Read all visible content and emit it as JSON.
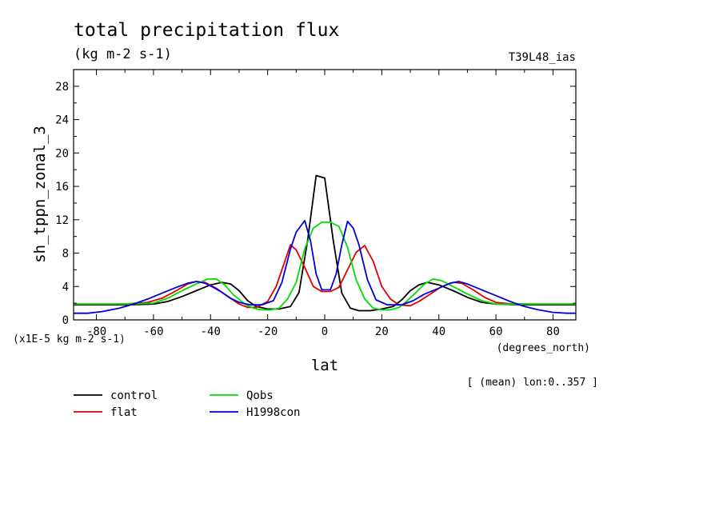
{
  "chart_data": {
    "type": "line",
    "title": "total precipitation flux",
    "units": "(kg m-2 s-1)",
    "run_label": "T39L48_ias",
    "ylabel": "sh_tppn_zonal_3",
    "xlabel": "lat",
    "x_units": "(degrees_north)",
    "scale_note": "(x1E-5 kg m-2 s-1)",
    "average_note": "[ (mean) lon:0..357 ]",
    "xlim": [
      -88,
      88
    ],
    "ylim": [
      0,
      30
    ],
    "x_ticks": [
      -80,
      -60,
      -40,
      -20,
      0,
      20,
      40,
      60,
      80
    ],
    "y_ticks": [
      0,
      4,
      8,
      12,
      16,
      20,
      24,
      28
    ],
    "x_tick_labels": [
      "-80",
      "-60",
      "-40",
      "-20",
      "0",
      "20",
      "40",
      "60",
      "80"
    ],
    "y_tick_labels": [
      "0",
      "4",
      "8",
      "12",
      "16",
      "20",
      "24",
      "28"
    ],
    "grid": false,
    "legend_position": "bottom-left",
    "series": [
      {
        "name": "control",
        "color": "#000000",
        "points": [
          [
            -88,
            1.8
          ],
          [
            -80,
            1.8
          ],
          [
            -70,
            1.8
          ],
          [
            -60,
            1.9
          ],
          [
            -55,
            2.2
          ],
          [
            -50,
            2.8
          ],
          [
            -45,
            3.5
          ],
          [
            -40,
            4.2
          ],
          [
            -36,
            4.5
          ],
          [
            -33,
            4.3
          ],
          [
            -30,
            3.5
          ],
          [
            -27,
            2.3
          ],
          [
            -24,
            1.6
          ],
          [
            -20,
            1.3
          ],
          [
            -16,
            1.3
          ],
          [
            -12,
            1.6
          ],
          [
            -9,
            3.3
          ],
          [
            -6,
            9.5
          ],
          [
            -3,
            17.3
          ],
          [
            0,
            17.0
          ],
          [
            3,
            9.5
          ],
          [
            6,
            3.2
          ],
          [
            9,
            1.4
          ],
          [
            12,
            1.1
          ],
          [
            16,
            1.1
          ],
          [
            20,
            1.3
          ],
          [
            24,
            1.6
          ],
          [
            27,
            2.4
          ],
          [
            30,
            3.5
          ],
          [
            33,
            4.2
          ],
          [
            36,
            4.5
          ],
          [
            40,
            4.2
          ],
          [
            45,
            3.5
          ],
          [
            50,
            2.7
          ],
          [
            55,
            2.1
          ],
          [
            60,
            1.9
          ],
          [
            70,
            1.8
          ],
          [
            80,
            1.8
          ],
          [
            88,
            1.8
          ]
        ]
      },
      {
        "name": "flat",
        "color": "#e00000",
        "points": [
          [
            -88,
            1.9
          ],
          [
            -80,
            1.9
          ],
          [
            -70,
            1.9
          ],
          [
            -62,
            2.1
          ],
          [
            -57,
            2.6
          ],
          [
            -52,
            3.5
          ],
          [
            -48,
            4.3
          ],
          [
            -45,
            4.6
          ],
          [
            -42,
            4.5
          ],
          [
            -38,
            3.8
          ],
          [
            -34,
            2.8
          ],
          [
            -30,
            1.9
          ],
          [
            -27,
            1.5
          ],
          [
            -24,
            1.5
          ],
          [
            -20,
            2.2
          ],
          [
            -17,
            4.0
          ],
          [
            -14,
            7.0
          ],
          [
            -12,
            9.0
          ],
          [
            -10,
            8.4
          ],
          [
            -7,
            6.3
          ],
          [
            -4,
            4.0
          ],
          [
            -1,
            3.4
          ],
          [
            2,
            3.4
          ],
          [
            5,
            3.9
          ],
          [
            8,
            6.0
          ],
          [
            11,
            8.1
          ],
          [
            14,
            8.9
          ],
          [
            17,
            7.0
          ],
          [
            20,
            4.0
          ],
          [
            23,
            2.5
          ],
          [
            26,
            1.8
          ],
          [
            30,
            1.7
          ],
          [
            33,
            2.2
          ],
          [
            37,
            3.1
          ],
          [
            41,
            4.0
          ],
          [
            45,
            4.5
          ],
          [
            48,
            4.4
          ],
          [
            52,
            3.6
          ],
          [
            56,
            2.7
          ],
          [
            60,
            2.1
          ],
          [
            66,
            1.9
          ],
          [
            75,
            1.9
          ],
          [
            88,
            1.9
          ]
        ]
      },
      {
        "name": "Qobs",
        "color": "#00dd00",
        "points": [
          [
            -88,
            1.9
          ],
          [
            -80,
            1.9
          ],
          [
            -70,
            1.9
          ],
          [
            -60,
            2.0
          ],
          [
            -55,
            2.6
          ],
          [
            -50,
            3.5
          ],
          [
            -45,
            4.3
          ],
          [
            -41,
            4.9
          ],
          [
            -38,
            4.9
          ],
          [
            -35,
            4.2
          ],
          [
            -32,
            3.0
          ],
          [
            -28,
            1.9
          ],
          [
            -25,
            1.4
          ],
          [
            -22,
            1.2
          ],
          [
            -19,
            1.2
          ],
          [
            -16,
            1.4
          ],
          [
            -13,
            2.5
          ],
          [
            -10,
            4.5
          ],
          [
            -7,
            8.5
          ],
          [
            -4,
            11.0
          ],
          [
            -1,
            11.7
          ],
          [
            2,
            11.7
          ],
          [
            5,
            11.2
          ],
          [
            8,
            8.7
          ],
          [
            11,
            4.8
          ],
          [
            14,
            2.5
          ],
          [
            17,
            1.4
          ],
          [
            20,
            1.2
          ],
          [
            23,
            1.2
          ],
          [
            26,
            1.5
          ],
          [
            29,
            2.3
          ],
          [
            32,
            3.3
          ],
          [
            35,
            4.3
          ],
          [
            38,
            4.9
          ],
          [
            41,
            4.7
          ],
          [
            45,
            4.0
          ],
          [
            50,
            3.1
          ],
          [
            55,
            2.3
          ],
          [
            60,
            1.9
          ],
          [
            70,
            1.9
          ],
          [
            80,
            1.9
          ],
          [
            88,
            1.9
          ]
        ]
      },
      {
        "name": "H1998con",
        "color": "#0000dd",
        "points": [
          [
            -88,
            0.8
          ],
          [
            -83,
            0.8
          ],
          [
            -78,
            1.0
          ],
          [
            -72,
            1.4
          ],
          [
            -67,
            1.9
          ],
          [
            -62,
            2.5
          ],
          [
            -57,
            3.2
          ],
          [
            -52,
            3.9
          ],
          [
            -48,
            4.4
          ],
          [
            -45,
            4.6
          ],
          [
            -42,
            4.4
          ],
          [
            -39,
            3.9
          ],
          [
            -36,
            3.3
          ],
          [
            -33,
            2.6
          ],
          [
            -30,
            2.1
          ],
          [
            -26,
            1.8
          ],
          [
            -22,
            1.8
          ],
          [
            -18,
            2.3
          ],
          [
            -15,
            4.5
          ],
          [
            -12,
            8.5
          ],
          [
            -10,
            10.5
          ],
          [
            -7,
            11.9
          ],
          [
            -5,
            9.5
          ],
          [
            -3,
            5.5
          ],
          [
            -1,
            3.6
          ],
          [
            2,
            3.6
          ],
          [
            4,
            5.5
          ],
          [
            6,
            9.0
          ],
          [
            8,
            11.8
          ],
          [
            10,
            11.0
          ],
          [
            12,
            9.0
          ],
          [
            15,
            4.8
          ],
          [
            18,
            2.4
          ],
          [
            22,
            1.8
          ],
          [
            27,
            1.8
          ],
          [
            31,
            2.3
          ],
          [
            35,
            3.1
          ],
          [
            40,
            3.8
          ],
          [
            44,
            4.4
          ],
          [
            47,
            4.6
          ],
          [
            50,
            4.3
          ],
          [
            55,
            3.6
          ],
          [
            60,
            2.9
          ],
          [
            65,
            2.2
          ],
          [
            70,
            1.6
          ],
          [
            75,
            1.2
          ],
          [
            80,
            0.9
          ],
          [
            85,
            0.8
          ],
          [
            88,
            0.8
          ]
        ]
      }
    ]
  }
}
